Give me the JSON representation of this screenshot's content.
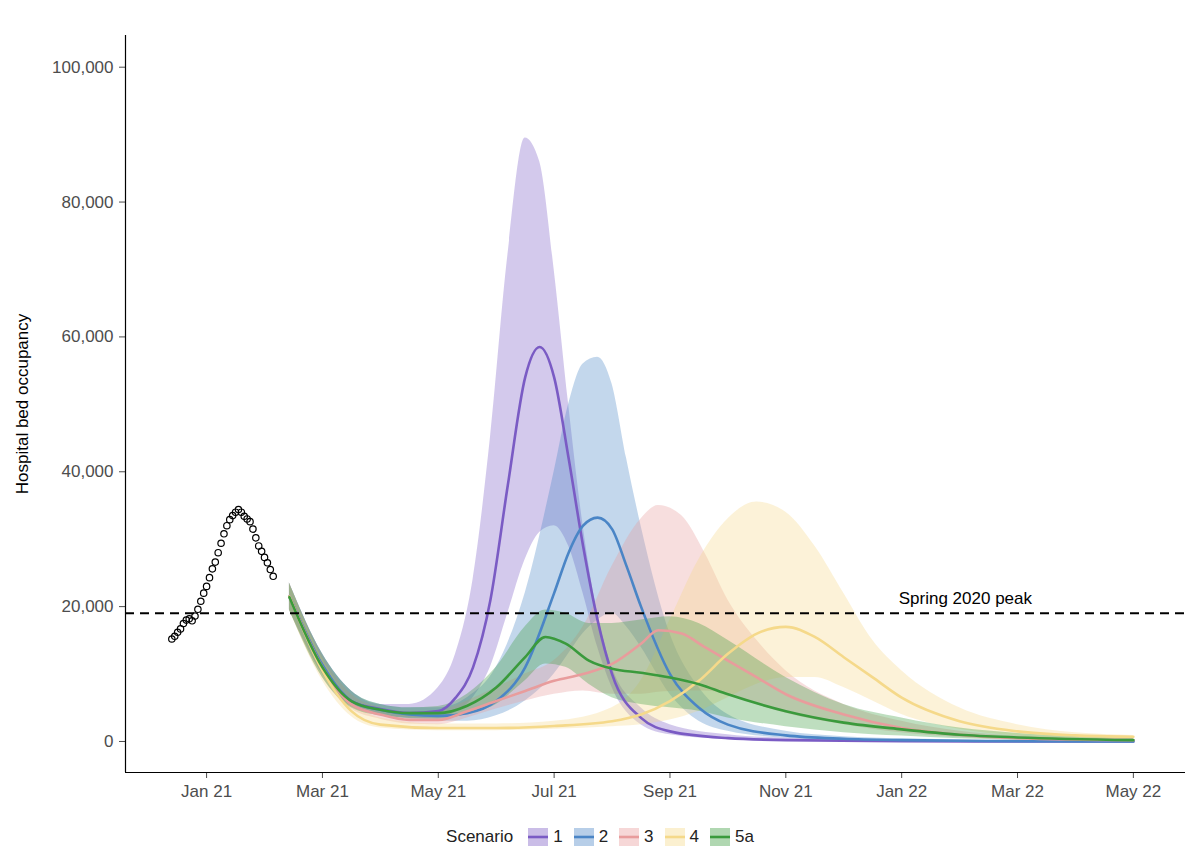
{
  "chart_data": {
    "type": "line",
    "y_label": "Hospital bed occupancy",
    "legend_title": "Scenario",
    "legend": "bottom",
    "xlim": [
      -1.4,
      16.9
    ],
    "xticks": [
      {
        "value": 0,
        "label": "Jan 21"
      },
      {
        "value": 2,
        "label": "Mar 21"
      },
      {
        "value": 4,
        "label": "May 21"
      },
      {
        "value": 6,
        "label": "Jul 21"
      },
      {
        "value": 8,
        "label": "Sep 21"
      },
      {
        "value": 10,
        "label": "Nov 21"
      },
      {
        "value": 12,
        "label": "Jan 22"
      },
      {
        "value": 14,
        "label": "Mar 22"
      },
      {
        "value": 16,
        "label": "May 22"
      }
    ],
    "ylim": [
      -4600,
      104700
    ],
    "yticks": [
      0,
      {
        "value": 20000,
        "label": "20,000"
      },
      {
        "value": 40000,
        "label": "40,000"
      },
      {
        "value": 60000,
        "label": "60,000"
      },
      {
        "value": 80000,
        "label": "80,000"
      },
      {
        "value": 100000,
        "label": "100,000"
      }
    ],
    "observed": {
      "marker": "circle",
      "color": "#000000",
      "x": [
        -0.6,
        -0.55,
        -0.5,
        -0.45,
        -0.4,
        -0.35,
        -0.3,
        -0.25,
        -0.2,
        -0.15,
        -0.1,
        -0.05,
        0,
        0.05,
        0.1,
        0.15,
        0.2,
        0.25,
        0.3,
        0.35,
        0.4,
        0.45,
        0.5,
        0.55,
        0.6,
        0.65,
        0.7,
        0.75,
        0.8,
        0.85,
        0.9,
        0.95,
        1.0,
        1.05,
        1.1,
        1.15
      ],
      "values": [
        15200,
        15600,
        16200,
        16700,
        17500,
        18000,
        18200,
        17900,
        18600,
        19600,
        20800,
        22000,
        23000,
        24300,
        25600,
        26600,
        28000,
        29400,
        30800,
        32000,
        32900,
        33500,
        34000,
        34400,
        34000,
        33400,
        33000,
        32600,
        31500,
        30200,
        29000,
        28200,
        27300,
        26500,
        25500,
        24500
      ]
    },
    "series": [
      {
        "name": "1",
        "color": "#7a5bc4",
        "x": [
          1.43,
          2.0,
          2.5,
          3.0,
          3.5,
          4.0,
          4.3,
          4.6,
          4.9,
          5.2,
          5.5,
          5.75,
          6.0,
          6.25,
          6.5,
          6.75,
          7.0,
          7.5,
          8.0,
          9.0,
          10.0,
          12.0,
          14.0,
          16.0
        ],
        "values": [
          21500,
          11300,
          6000,
          4800,
          4200,
          4500,
          6500,
          11000,
          21000,
          38000,
          54000,
          58500,
          54000,
          42000,
          29000,
          18000,
          10000,
          3500,
          1500,
          500,
          200,
          50,
          0,
          0
        ],
        "upper": [
          23500,
          13000,
          7500,
          5500,
          5500,
          8000,
          13000,
          24000,
          45000,
          72000,
          89500,
          86000,
          70000,
          50000,
          32000,
          19000,
          11000,
          5000,
          2500,
          1000,
          500,
          200,
          100,
          100
        ],
        "lower": [
          19500,
          10000,
          5200,
          4000,
          3500,
          3500,
          4300,
          6500,
          11000,
          19000,
          27000,
          31000,
          32000,
          29000,
          22000,
          14000,
          8000,
          2500,
          1000,
          300,
          100,
          0,
          0,
          0
        ]
      },
      {
        "name": "2",
        "color": "#4a85c6",
        "x": [
          1.43,
          2.0,
          2.5,
          3.0,
          3.5,
          4.0,
          4.5,
          5.0,
          5.5,
          6.0,
          6.25,
          6.5,
          6.75,
          7.0,
          7.25,
          7.5,
          8.0,
          8.5,
          9.0,
          10.0,
          11.0,
          12.0,
          14.0,
          16.0
        ],
        "values": [
          21500,
          11300,
          6000,
          4700,
          4000,
          3800,
          4200,
          6000,
          11000,
          22000,
          28000,
          32000,
          33200,
          31500,
          26000,
          20000,
          10000,
          5000,
          2500,
          900,
          400,
          200,
          50,
          0
        ],
        "upper": [
          23500,
          13000,
          7500,
          5500,
          5000,
          5000,
          6500,
          11000,
          22000,
          40000,
          50000,
          56000,
          57000,
          53000,
          42000,
          32000,
          16000,
          8000,
          4000,
          1500,
          700,
          400,
          100,
          50
        ],
        "lower": [
          19500,
          10000,
          5200,
          4000,
          3300,
          3000,
          3000,
          3800,
          6000,
          10000,
          13000,
          16000,
          18000,
          19000,
          17000,
          14000,
          7000,
          3000,
          1500,
          500,
          200,
          100,
          0,
          0
        ]
      },
      {
        "name": "3",
        "color": "#e89c9c",
        "x": [
          1.43,
          2.0,
          2.5,
          3.0,
          3.5,
          4.0,
          4.5,
          5.0,
          5.5,
          6.0,
          6.5,
          7.0,
          7.5,
          7.8,
          8.2,
          8.6,
          9.0,
          9.5,
          10.0,
          11.0,
          12.0,
          13.0,
          14.0,
          16.0
        ],
        "values": [
          21500,
          11000,
          5500,
          4000,
          3200,
          3200,
          4500,
          6000,
          7500,
          9000,
          10000,
          11500,
          14500,
          16500,
          16000,
          14000,
          12000,
          9500,
          7000,
          4000,
          2000,
          1000,
          500,
          200
        ],
        "upper": [
          23500,
          12800,
          7000,
          5000,
          4200,
          4500,
          6000,
          8000,
          10000,
          12000,
          17000,
          26000,
          33000,
          35000,
          33500,
          28000,
          21000,
          15000,
          10500,
          5500,
          3000,
          1500,
          800,
          400
        ],
        "lower": [
          19500,
          9500,
          4800,
          3300,
          2600,
          2500,
          3500,
          4800,
          6000,
          7000,
          7500,
          7000,
          7000,
          7300,
          7500,
          7500,
          7000,
          5500,
          4200,
          2500,
          1300,
          600,
          300,
          100
        ]
      },
      {
        "name": "4",
        "color": "#f5d98a",
        "x": [
          1.43,
          2.0,
          2.5,
          3.0,
          4.0,
          5.0,
          6.0,
          7.0,
          7.5,
          8.0,
          8.5,
          9.0,
          9.5,
          10.0,
          10.5,
          11.0,
          11.5,
          12.0,
          13.0,
          14.0,
          15.0,
          16.0
        ],
        "values": [
          21500,
          10500,
          4500,
          2500,
          2000,
          2000,
          2300,
          3000,
          4000,
          6000,
          9000,
          13000,
          16000,
          17000,
          15500,
          12500,
          9500,
          6500,
          3000,
          1500,
          900,
          700
        ],
        "upper": [
          23500,
          12300,
          6000,
          3500,
          2600,
          2600,
          3000,
          5000,
          9000,
          18000,
          27000,
          33000,
          35500,
          34000,
          29000,
          22000,
          15000,
          10500,
          5000,
          2500,
          1300,
          900
        ],
        "lower": [
          19500,
          9000,
          3700,
          2000,
          1600,
          1600,
          1800,
          2200,
          2500,
          3200,
          4500,
          6500,
          8500,
          9500,
          9500,
          8000,
          6000,
          4000,
          1800,
          800,
          400,
          300
        ]
      },
      {
        "name": "5a",
        "color": "#3a9a3c",
        "x": [
          1.43,
          2.0,
          2.5,
          3.0,
          3.5,
          4.0,
          4.5,
          5.0,
          5.5,
          5.85,
          6.2,
          6.6,
          7.0,
          7.5,
          8.0,
          8.5,
          9.0,
          10.0,
          11.0,
          12.0,
          13.0,
          14.0,
          16.0
        ],
        "values": [
          21400,
          11000,
          6000,
          4700,
          4200,
          4200,
          5300,
          8000,
          12500,
          15500,
          14500,
          12000,
          10800,
          10200,
          9500,
          8500,
          7000,
          4500,
          2800,
          1800,
          1000,
          600,
          200
        ],
        "upper": [
          23500,
          13000,
          7500,
          5500,
          5000,
          5200,
          7000,
          11000,
          17000,
          19500,
          19000,
          17500,
          17500,
          18000,
          18500,
          17500,
          15000,
          9500,
          5500,
          3500,
          2000,
          1200,
          500
        ],
        "lower": [
          19500,
          9500,
          5000,
          3800,
          3400,
          3300,
          4000,
          5500,
          9000,
          11500,
          11000,
          8500,
          6500,
          5500,
          5000,
          4500,
          3500,
          2200,
          1300,
          800,
          400,
          200,
          50
        ]
      }
    ],
    "annotations": [
      {
        "text": "Spring 2020 peak",
        "y": 19000,
        "x": 13.1,
        "line_style": "dashed"
      }
    ]
  }
}
